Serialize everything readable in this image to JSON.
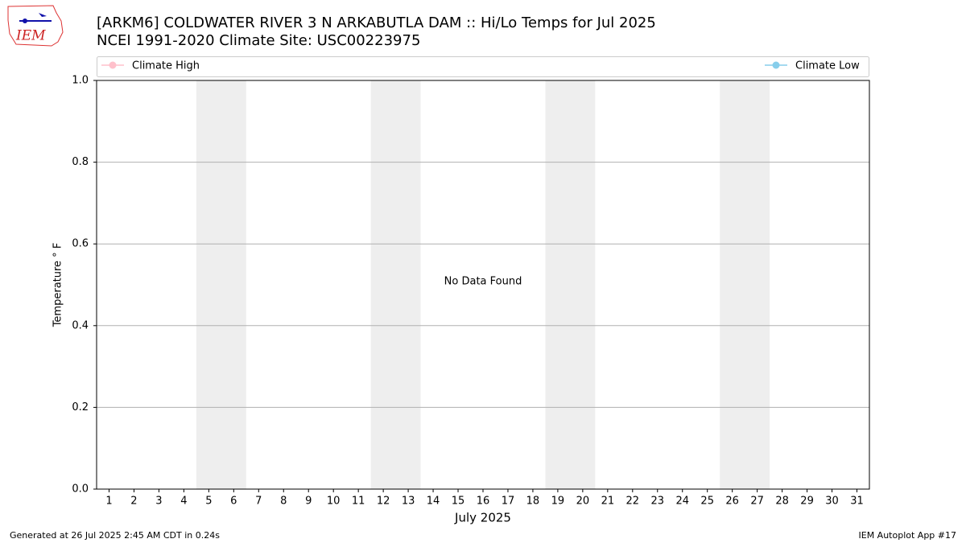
{
  "logo_text": "IEM",
  "chart_data": {
    "type": "line",
    "title": "[ARKM6] COLDWATER RIVER 3 N ARKABUTLA DAM :: Hi/Lo Temps for Jul 2025",
    "subtitle": "NCEI 1991-2020 Climate Site: USC00223975",
    "x_label": "July 2025",
    "y_label": "Temperature ° F",
    "annotation": "No Data Found",
    "series": [
      {
        "name": "Climate High",
        "color": "#ffc0cb",
        "values": []
      },
      {
        "name": "Climate Low",
        "color": "#87ceeb",
        "values": []
      }
    ],
    "xlim": [
      0.5,
      31.5
    ],
    "xticks": [
      1,
      2,
      3,
      4,
      5,
      6,
      7,
      8,
      9,
      10,
      11,
      12,
      13,
      14,
      15,
      16,
      17,
      18,
      19,
      20,
      21,
      22,
      23,
      24,
      25,
      26,
      27,
      28,
      29,
      30,
      31
    ],
    "ylim": [
      0,
      1
    ],
    "yticks": [
      {
        "value": 0,
        "label": "0.0"
      },
      0.2,
      0.4,
      0.6,
      0.8,
      {
        "value": 1,
        "label": "1.0"
      }
    ],
    "shaded_ranges": [
      [
        4.5,
        6.5
      ],
      [
        11.5,
        13.5
      ],
      [
        18.5,
        20.5
      ],
      [
        25.5,
        27.5
      ]
    ],
    "shade_color": "#eeeeee",
    "grid": true,
    "legend": "top",
    "footer_left": "Generated at 26 Jul 2025 2:45 AM CDT in 0.24s",
    "footer_right": "IEM Autoplot App #17"
  }
}
